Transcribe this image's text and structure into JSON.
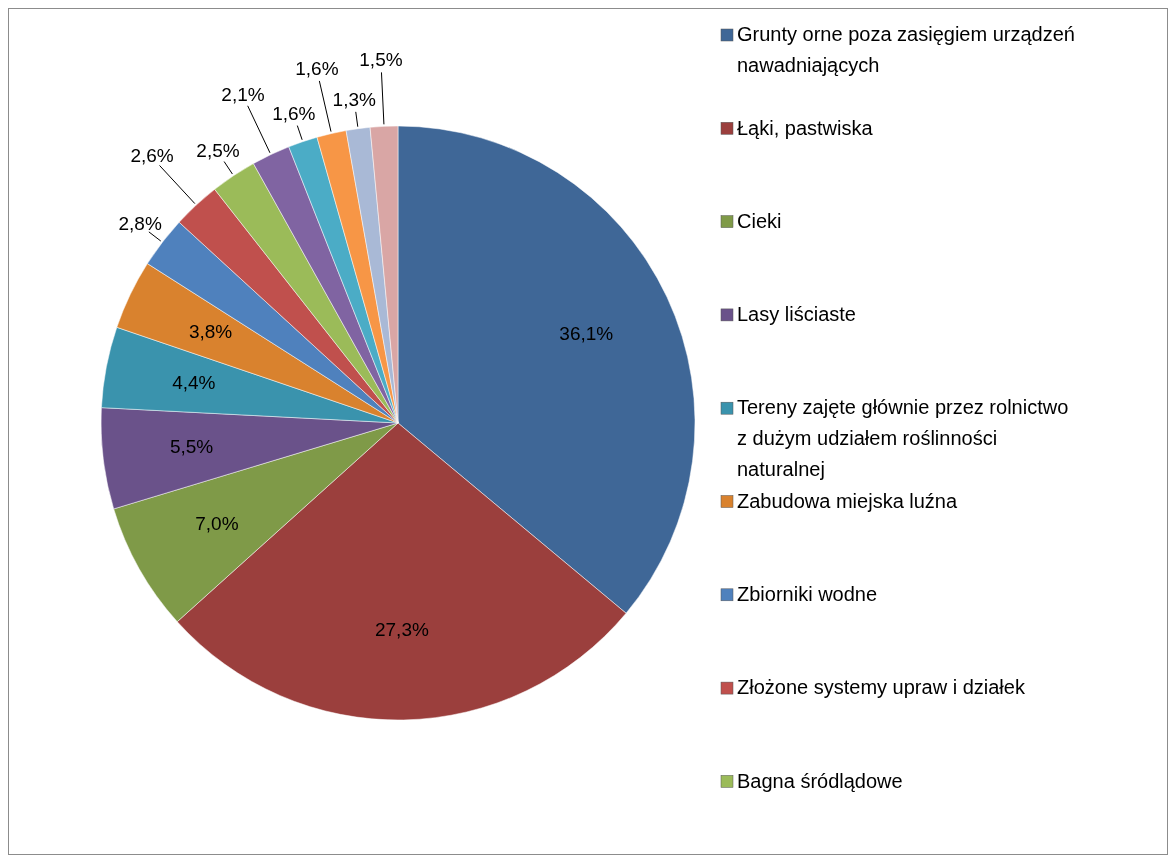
{
  "chart_data": {
    "type": "pie",
    "categories": [
      "Grunty orne poza zasięgiem urządzeń nawadniających",
      "Łąki, pastwiska",
      "Cieki",
      "Lasy liściaste",
      "Tereny zajęte głównie przez rolnictwo z dużym udziałem roślinności naturalnej",
      "Zabudowa miejska luźna",
      "Zbiorniki wodne",
      "Złożone systemy upraw i działek",
      "Bagna śródlądowe",
      null,
      null,
      null,
      null,
      null
    ],
    "values": [
      36.1,
      27.3,
      7.0,
      5.5,
      4.4,
      3.8,
      2.8,
      2.6,
      2.5,
      2.1,
      1.6,
      1.6,
      1.3,
      1.5
    ],
    "value_labels": [
      "36,1%",
      "27,3%",
      "7,0%",
      "5,5%",
      "4,4%",
      "3,8%",
      "2,8%",
      "2,6%",
      "2,5%",
      "2,1%",
      "1,6%",
      "1,6%",
      "1,3%",
      "1,5%"
    ],
    "colors": [
      "#3f6797",
      "#9b3f3d",
      "#7f9a48",
      "#6a528a",
      "#3a93ad",
      "#d9822e",
      "#4f81bd",
      "#c0504d",
      "#9bbb59",
      "#8064a2",
      "#4bacc6",
      "#f79646",
      "#a9b9d6",
      "#d9a6a5"
    ],
    "legend": "right"
  }
}
